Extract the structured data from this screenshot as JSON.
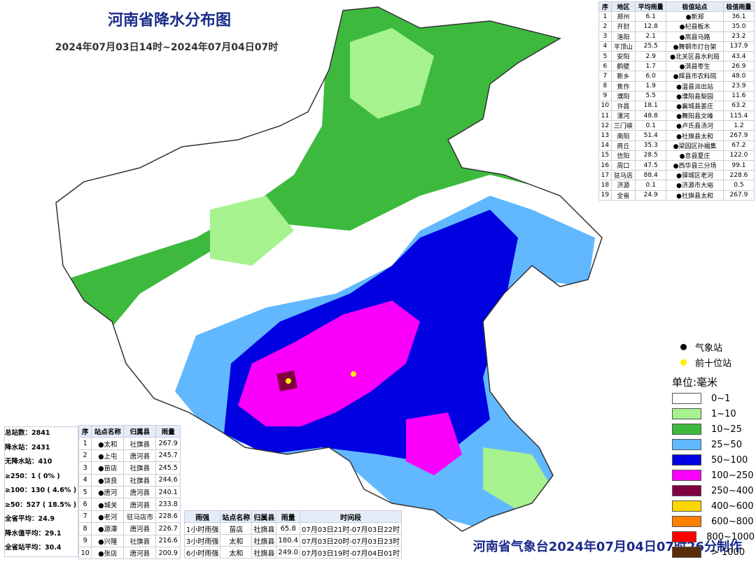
{
  "header": {
    "title": "河南省降水分布图",
    "period": "2024年07月03日14时~2024年07月04日07时"
  },
  "city_table": {
    "headers": [
      "序",
      "地区",
      "平均雨量",
      "极值站点",
      "极值雨量"
    ],
    "rows": [
      [
        "1",
        "郑州",
        "6.1",
        "●新郑",
        "36.1"
      ],
      [
        "2",
        "开封",
        "12.8",
        "●杞县板木",
        "35.0"
      ],
      [
        "3",
        "洛阳",
        "2.1",
        "●嵩县马路",
        "23.2"
      ],
      [
        "4",
        "平顶山",
        "25.5",
        "●舞钢市灯台架",
        "137.9"
      ],
      [
        "5",
        "安阳",
        "2.9",
        "●北关区县水利局",
        "43.4"
      ],
      [
        "6",
        "鹤壁",
        "1.7",
        "●淇县枣生",
        "26.9"
      ],
      [
        "7",
        "新乡",
        "6.0",
        "●辉县市农科院",
        "48.0"
      ],
      [
        "8",
        "焦作",
        "1.9",
        "●温县派出站",
        "23.9"
      ],
      [
        "9",
        "濮阳",
        "5.5",
        "●濮阳县梨园",
        "11.6"
      ],
      [
        "10",
        "许昌",
        "18.1",
        "●襄城县姜庄",
        "63.2"
      ],
      [
        "11",
        "漯河",
        "48.8",
        "●舞阳县文峰",
        "115.4"
      ],
      [
        "12",
        "三门峡",
        "0.1",
        "●卢氏县汤河",
        "1.2"
      ],
      [
        "13",
        "南阳",
        "51.4",
        "●社旗县太和",
        "267.9"
      ],
      [
        "14",
        "商丘",
        "35.3",
        "●梁园区孙福集",
        "67.2"
      ],
      [
        "15",
        "信阳",
        "28.5",
        "●息县夏庄",
        "122.0"
      ],
      [
        "16",
        "周口",
        "47.5",
        "●西华县三分场",
        "99.1"
      ],
      [
        "17",
        "驻马店",
        "88.4",
        "●驿城区老河",
        "228.6"
      ],
      [
        "18",
        "济源",
        "0.1",
        "●济源市大峪",
        "0.5"
      ],
      [
        "19",
        "全省",
        "24.9",
        "●社旗县太和",
        "267.9"
      ]
    ]
  },
  "stats": [
    "总站数：2841",
    "降水站：2431",
    "无降水站：410",
    "≥250：1 ( 0% )",
    "≥100：130 ( 4.6% )",
    "≥50：527 ( 18.5% )",
    "全省平均：24.9",
    "降水值平均：29.1",
    "全省站平均：30.4"
  ],
  "top10_table": {
    "headers": [
      "序",
      "站点名称",
      "归属县",
      "雨量"
    ],
    "rows": [
      [
        "1",
        "●太和",
        "社旗县",
        "267.9"
      ],
      [
        "2",
        "●上屯",
        "唐河县",
        "245.7"
      ],
      [
        "3",
        "●苗店",
        "社旗县",
        "245.5"
      ],
      [
        "4",
        "●饶良",
        "社旗县",
        "244.6"
      ],
      [
        "5",
        "●唐河",
        "唐河县",
        "240.1"
      ],
      [
        "6",
        "●城关",
        "唐河县",
        "233.8"
      ],
      [
        "7",
        "●老河",
        "驻马店市",
        "228.6"
      ],
      [
        "8",
        "●源潭",
        "唐河县",
        "226.7"
      ],
      [
        "9",
        "●兴隆",
        "社旗县",
        "216.6"
      ],
      [
        "10",
        "●张店",
        "唐河县",
        "200.9"
      ]
    ]
  },
  "intensity_table": {
    "headers": [
      "雨强",
      "站点名称",
      "归属县",
      "雨量",
      "时间段"
    ],
    "rows": [
      [
        "1小时雨强",
        "苗店",
        "社旗县",
        "65.8",
        "07月03日21时-07月03日22时"
      ],
      [
        "3小时雨强",
        "太和",
        "社旗县",
        "180.4",
        "07月03日20时-07月03日23时"
      ],
      [
        "6小时雨强",
        "太和",
        "社旗县",
        "249.0",
        "07月03日19时-07月04日01时"
      ]
    ]
  },
  "legend": {
    "station": "气象站",
    "top_station": "前十位站",
    "unit": "单位:毫米",
    "items": [
      {
        "label": "0~1",
        "color": "#ffffff"
      },
      {
        "label": "1~10",
        "color": "#a6f28f"
      },
      {
        "label": "10~25",
        "color": "#3dba3d"
      },
      {
        "label": "25~50",
        "color": "#61b8ff"
      },
      {
        "label": "50~100",
        "color": "#0000e1"
      },
      {
        "label": "100~250",
        "color": "#fa00fa"
      },
      {
        "label": "250~400",
        "color": "#800040"
      },
      {
        "label": "400~600",
        "color": "#ffd700"
      },
      {
        "label": "600~800",
        "color": "#ff7f00"
      },
      {
        "label": "800~1000",
        "color": "#ff0000"
      },
      {
        "label": "> 1000",
        "color": "#5a2d0a"
      }
    ]
  },
  "footer": "河南省气象台2024年07月04日07时26分制作"
}
